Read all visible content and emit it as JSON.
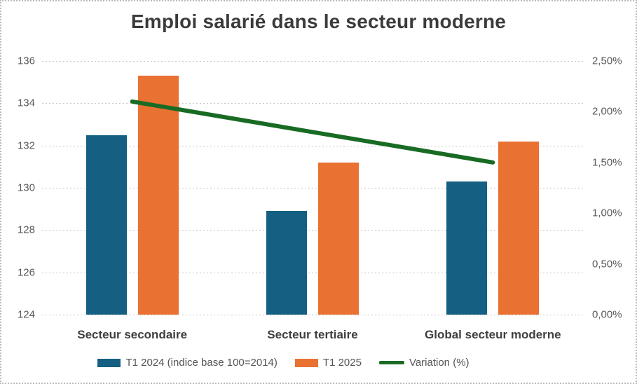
{
  "chart_data": {
    "type": "bar",
    "subtype": "combo-bar-line-dual-axis",
    "title": "Emploi salarié dans le secteur moderne",
    "categories": [
      "Secteur secondaire",
      "Secteur tertiaire",
      "Global secteur moderne"
    ],
    "series": [
      {
        "name": "T1 2024 (indice base 100=2014)",
        "type": "bar",
        "axis": "left",
        "color": "#156082",
        "values": [
          132.5,
          128.9,
          130.3
        ]
      },
      {
        "name": "T1 2025",
        "type": "bar",
        "axis": "left",
        "color": "#E97132",
        "values": [
          135.3,
          131.2,
          132.2
        ]
      },
      {
        "name": "Variation (%)",
        "type": "line",
        "axis": "right",
        "color": "#196B24",
        "values": [
          2.1,
          1.8,
          1.5
        ]
      }
    ],
    "left_axis": {
      "min": 124,
      "max": 136,
      "step": 2,
      "ticks": [
        "136",
        "134",
        "132",
        "130",
        "128",
        "126",
        "124"
      ]
    },
    "right_axis": {
      "min": 0,
      "max": 2.5,
      "step": 0.5,
      "ticks": [
        "2,50%",
        "2,00%",
        "1,50%",
        "1,00%",
        "0,50%",
        "0,00%"
      ]
    },
    "grid": true,
    "gridline_style": "dotted",
    "legend_position": "bottom",
    "colors": {
      "title_text": "#3b3b3b",
      "axis_text": "#595959",
      "category_text": "#3f3f3f",
      "gridline": "#c6c6c6",
      "border": "#b9b9b9",
      "background": "#ffffff"
    }
  }
}
